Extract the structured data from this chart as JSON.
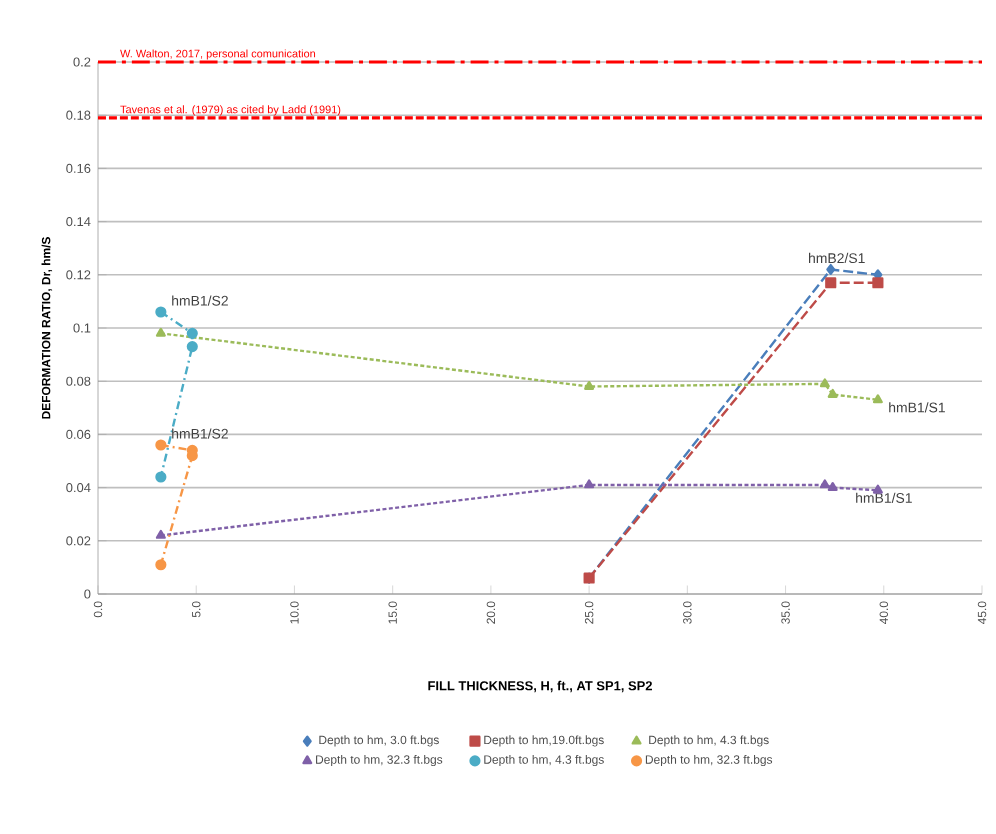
{
  "chart_data": {
    "type": "line",
    "xlabel": "FILL THICKNESS,  H, ft., AT SP1, SP2",
    "ylabel": "DEFORMATION RATIO, Dr, hm/S",
    "xlim": [
      0,
      45
    ],
    "xticks": [
      {
        "value": 0,
        "label": "0.0"
      },
      {
        "value": 5,
        "label": "5.0"
      },
      {
        "value": 10,
        "label": "10.0"
      },
      {
        "value": 15,
        "label": "15.0"
      },
      {
        "value": 20,
        "label": "20.0"
      },
      {
        "value": 25,
        "label": "25.0"
      },
      {
        "value": 30,
        "label": "30.0"
      },
      {
        "value": 35,
        "label": "35.0"
      },
      {
        "value": 40,
        "label": "40.0"
      },
      {
        "value": 45,
        "label": "45.0"
      }
    ],
    "ylim": [
      0,
      0.2
    ],
    "yticks": [
      0,
      0.02,
      0.04,
      0.06,
      0.08,
      0.1,
      0.12,
      0.14,
      0.16,
      0.18,
      0.2
    ],
    "grid": "y",
    "legend": "bottom",
    "series": [
      {
        "name": "Depth to hm, 3.0 ft.bgs",
        "color": "#4a7ebb",
        "marker": "diamond",
        "line_style": "dashed",
        "x": [
          25,
          37.3,
          39.7
        ],
        "values": [
          0.006,
          0.122,
          0.12
        ]
      },
      {
        "name": "Depth to hm,19.0ft.bgs",
        "color": "#be4b48",
        "marker": "square",
        "line_style": "dashed",
        "x": [
          25,
          37.3,
          39.7
        ],
        "values": [
          0.006,
          0.117,
          0.117
        ]
      },
      {
        "name": "Depth to hm, 4.3 ft.bgs",
        "color": "#9bbb59",
        "marker": "triangle",
        "line_style": "dotted",
        "x": [
          3.2,
          25,
          37,
          37.4,
          39.7
        ],
        "values": [
          0.098,
          0.078,
          0.079,
          0.075,
          0.073
        ]
      },
      {
        "name": "Depth to hm, 32.3 ft.bgs",
        "color": "#7f60a8",
        "marker": "triangle",
        "line_style": "dotted",
        "x": [
          3.2,
          25,
          37,
          37.4,
          39.7
        ],
        "values": [
          0.022,
          0.041,
          0.041,
          0.04,
          0.039
        ]
      },
      {
        "name": "Depth to hm, 4.3 ft.bgs",
        "color": "#4bacc6",
        "marker": "circle",
        "line_style": "dashdot",
        "x": [
          3.2,
          4.8,
          4.8,
          3.2
        ],
        "values": [
          0.106,
          0.098,
          0.093,
          0.044
        ]
      },
      {
        "name": "Depth to hm, 32.3 ft.bgs",
        "color": "#f79646",
        "marker": "circle",
        "line_style": "dashdot",
        "x": [
          3.2,
          4.8,
          4.8,
          3.2
        ],
        "values": [
          0.056,
          0.054,
          0.052,
          0.011
        ]
      }
    ],
    "ref_lines": [
      {
        "axis": "y",
        "value": 0.2,
        "label": "W. Walton, 2017, personal comunication",
        "color": "#ff0000",
        "line_style": "dashdot"
      },
      {
        "axis": "y",
        "value": 0.179,
        "label": "Tavenas et al. (1979) as cited by  Ladd (1991)",
        "color": "#ff0000",
        "line_style": "dashed"
      }
    ],
    "annotations": [
      {
        "text": "hmB1/S2",
        "x": 3.2,
        "y": 0.106
      },
      {
        "text": "hmB1/S2",
        "x": 3.2,
        "y": 0.056
      },
      {
        "text": "hmB2/S1",
        "x": 37.3,
        "y": 0.122
      },
      {
        "text": "hmB1/S1",
        "x": 39.7,
        "y": 0.073
      },
      {
        "text": "hmB1/S1",
        "x": 39.7,
        "y": 0.039
      }
    ]
  }
}
